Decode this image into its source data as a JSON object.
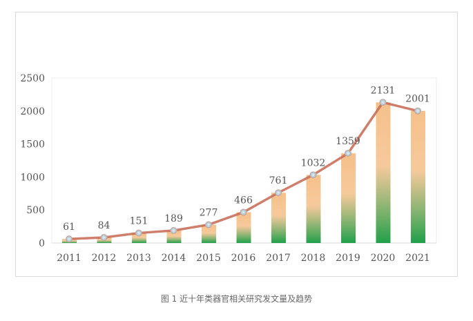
{
  "chart_data": {
    "type": "bar+line",
    "categories": [
      "2011",
      "2012",
      "2013",
      "2014",
      "2015",
      "2016",
      "2017",
      "2018",
      "2019",
      "2020",
      "2021"
    ],
    "values": [
      61,
      84,
      151,
      189,
      277,
      466,
      761,
      1032,
      1359,
      2131,
      2001
    ],
    "ylim": [
      0,
      2500
    ],
    "yticks": [
      0,
      500,
      1000,
      1500,
      2000,
      2500
    ],
    "ytick_labels": [
      "0",
      "500",
      "1000",
      "1500",
      "2000",
      "2500"
    ],
    "grid": false,
    "colors": {
      "bar_top": "#f5c08a",
      "bar_bottom": "#1fa04a",
      "line": "#c9705a",
      "marker": "#9fb8c6"
    }
  },
  "caption": "图 1 近十年类器官相关研究发文量及趋势"
}
